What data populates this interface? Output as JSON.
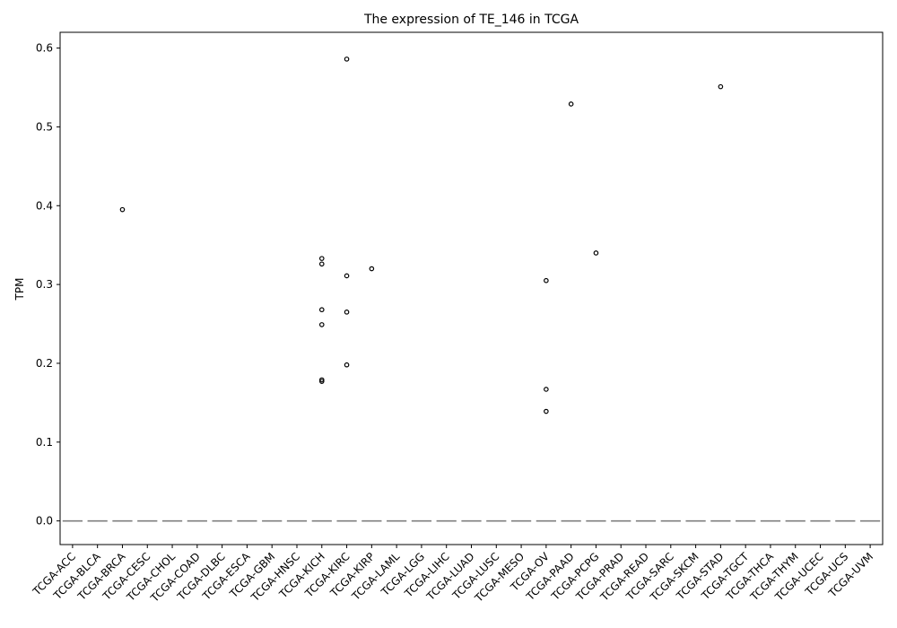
{
  "chart_data": {
    "type": "box",
    "title": "The expression of TE_146 in TCGA",
    "xlabel": "",
    "ylabel": "TPM",
    "ylim": [
      -0.03,
      0.62
    ],
    "yticks": [
      0.0,
      0.1,
      0.2,
      0.3,
      0.4,
      0.5,
      0.6
    ],
    "ytick_labels": [
      "0.0",
      "0.1",
      "0.2",
      "0.3",
      "0.4",
      "0.5",
      "0.6"
    ],
    "grid": false,
    "box_color": "#7f7f7f",
    "categories": [
      "TCGA-ACC",
      "TCGA-BLCA",
      "TCGA-BRCA",
      "TCGA-CESC",
      "TCGA-CHOL",
      "TCGA-COAD",
      "TCGA-DLBC",
      "TCGA-ESCA",
      "TCGA-GBM",
      "TCGA-HNSC",
      "TCGA-KICH",
      "TCGA-KIRC",
      "TCGA-KIRP",
      "TCGA-LAML",
      "TCGA-LGG",
      "TCGA-LIHC",
      "TCGA-LUAD",
      "TCGA-LUSC",
      "TCGA-MESO",
      "TCGA-OV",
      "TCGA-PAAD",
      "TCGA-PCPG",
      "TCGA-PRAD",
      "TCGA-READ",
      "TCGA-SARC",
      "TCGA-SKCM",
      "TCGA-STAD",
      "TCGA-TGCT",
      "TCGA-THCA",
      "TCGA-THYM",
      "TCGA-UCEC",
      "TCGA-UCS",
      "TCGA-UVM"
    ],
    "medians": [
      0,
      0,
      0,
      0,
      0,
      0,
      0,
      0,
      0,
      0,
      0,
      0,
      0,
      0,
      0,
      0,
      0,
      0,
      0,
      0,
      0,
      0,
      0,
      0,
      0,
      0,
      0,
      0,
      0,
      0,
      0,
      0,
      0
    ],
    "outliers": [
      {
        "category": "TCGA-BRCA",
        "values": [
          0.395
        ]
      },
      {
        "category": "TCGA-KICH",
        "values": [
          0.333,
          0.326,
          0.268,
          0.249,
          0.179,
          0.177
        ]
      },
      {
        "category": "TCGA-KIRC",
        "values": [
          0.586,
          0.311,
          0.265,
          0.198
        ]
      },
      {
        "category": "TCGA-KIRP",
        "values": [
          0.32
        ]
      },
      {
        "category": "TCGA-OV",
        "values": [
          0.305,
          0.167,
          0.139
        ]
      },
      {
        "category": "TCGA-PAAD",
        "values": [
          0.529
        ]
      },
      {
        "category": "TCGA-PCPG",
        "values": [
          0.34
        ]
      },
      {
        "category": "TCGA-STAD",
        "values": [
          0.551
        ]
      }
    ]
  }
}
